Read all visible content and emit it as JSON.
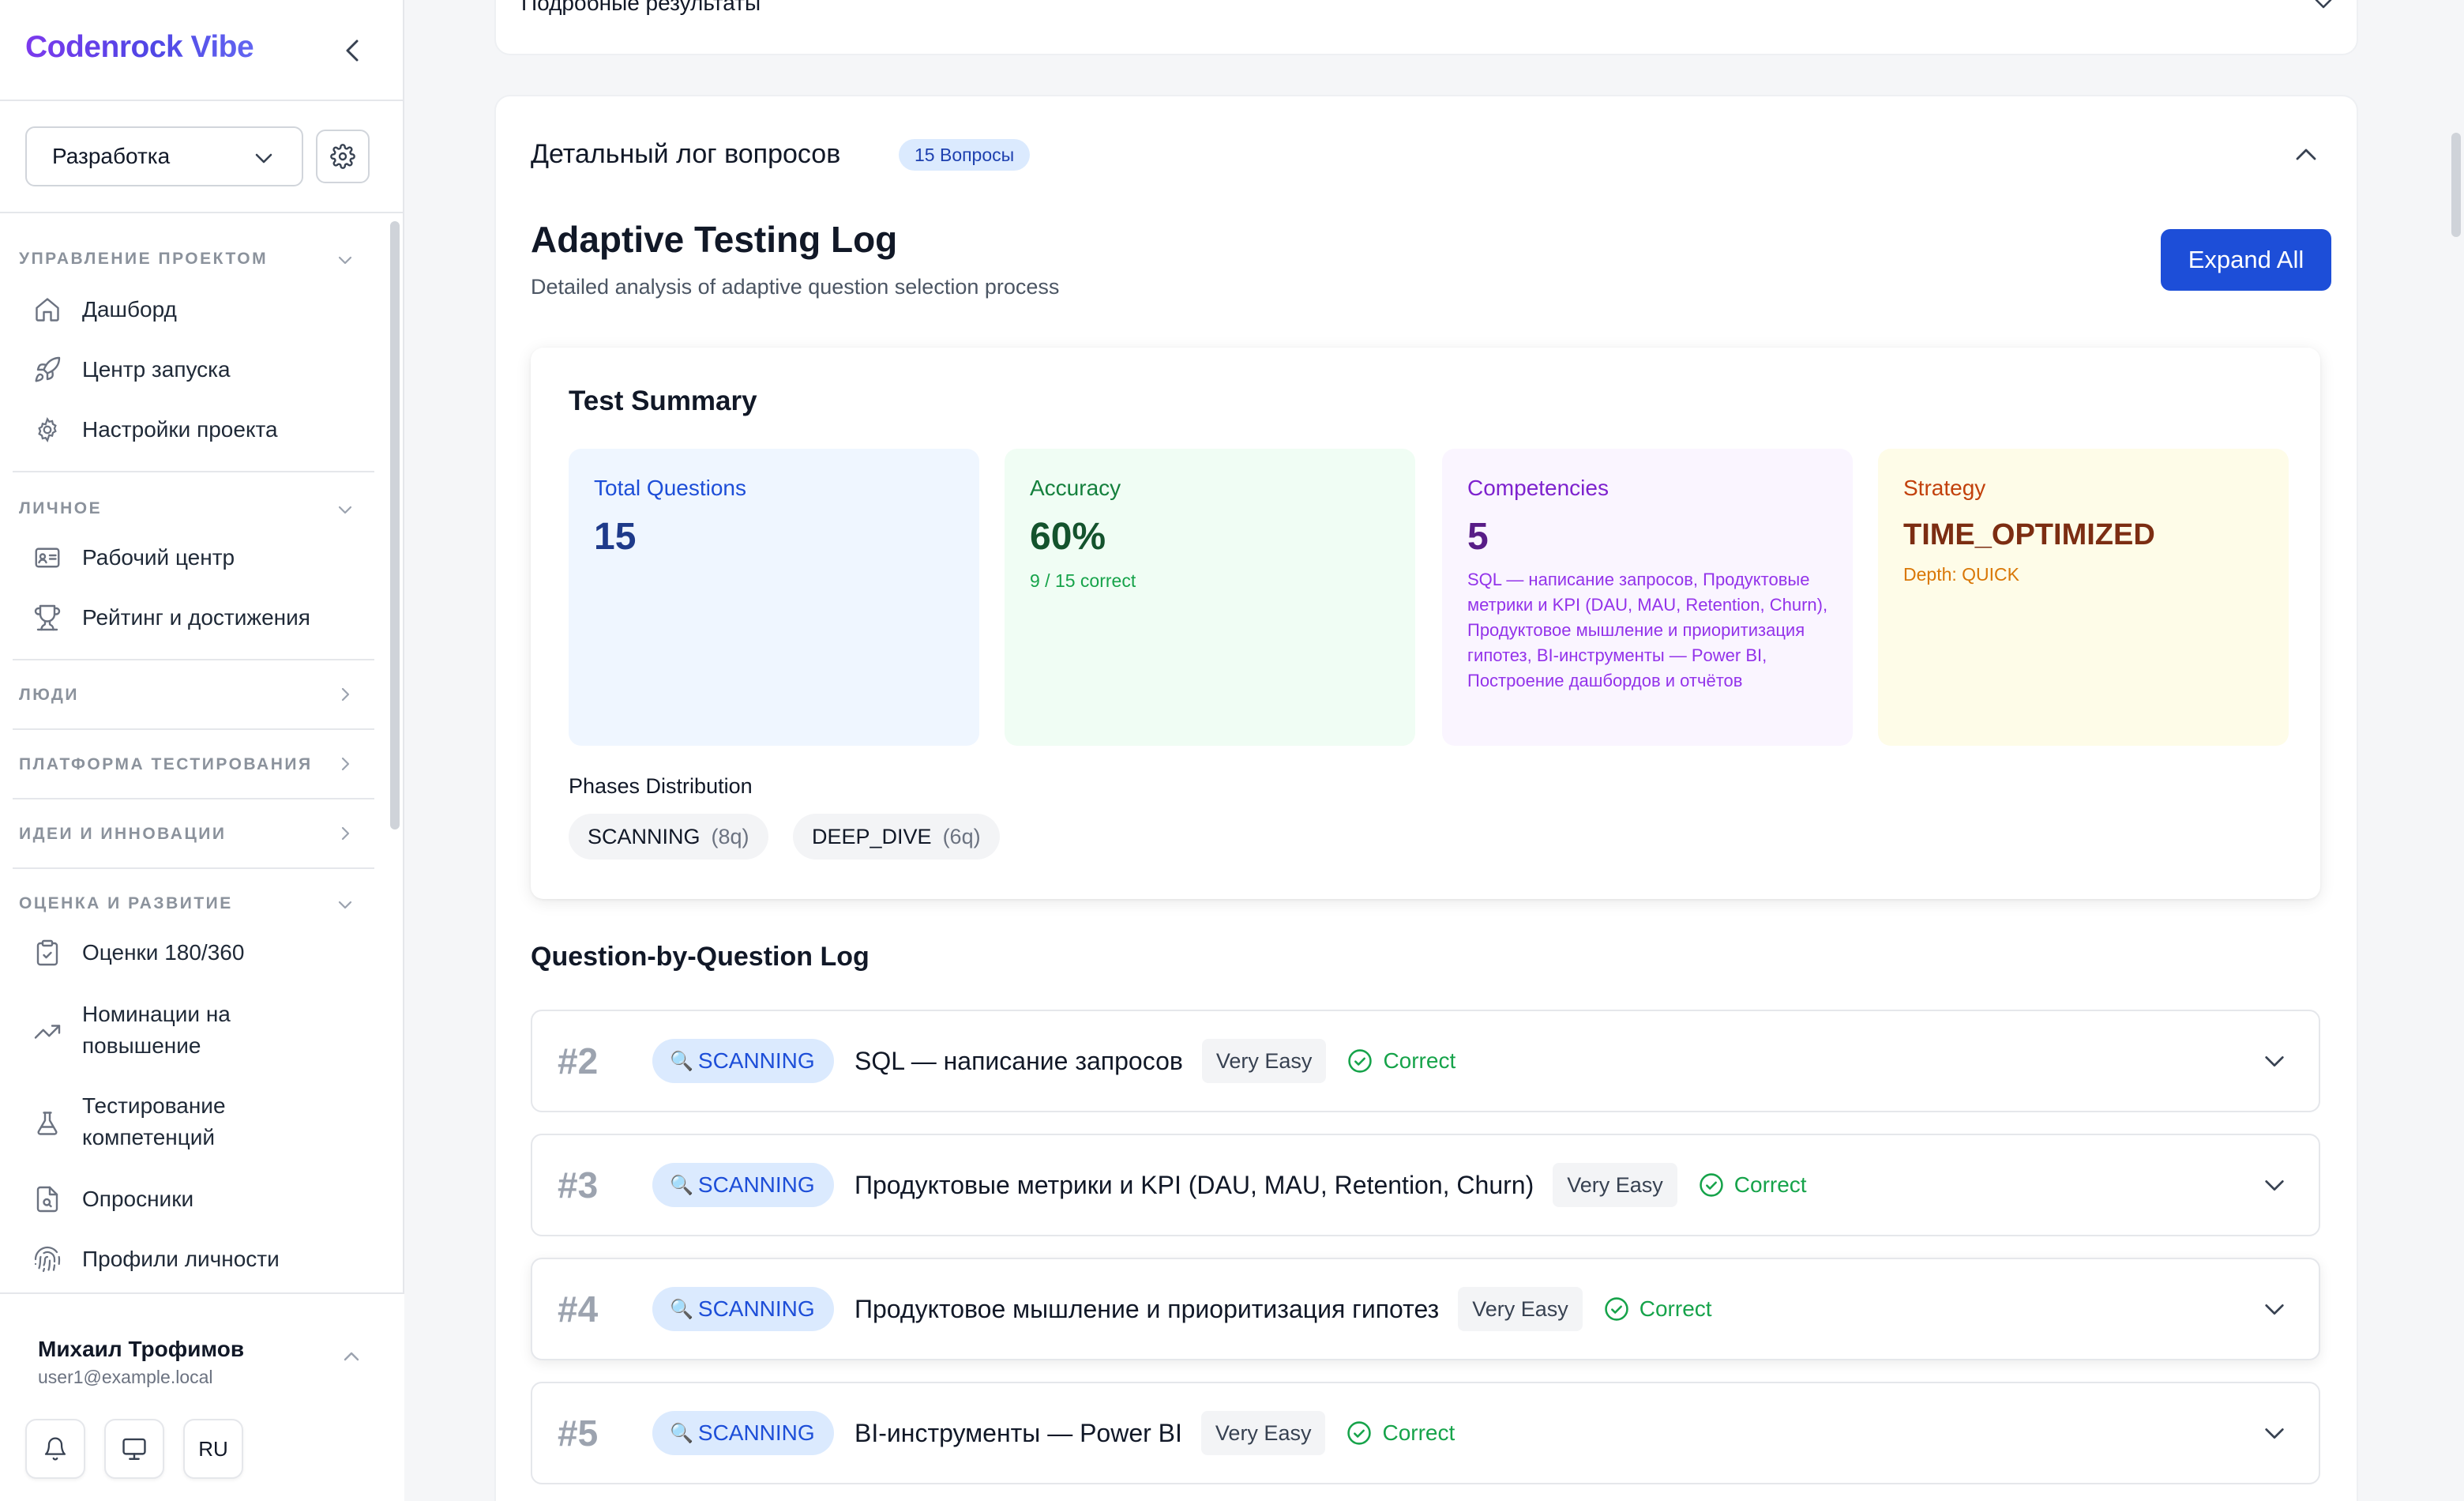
{
  "brand": "Codenrock Vibe",
  "project_select": {
    "value": "Разработка"
  },
  "sidebar": {
    "sections": [
      {
        "title": "Управление проектом",
        "items": [
          "Дашборд",
          "Центр запуска",
          "Настройки проекта"
        ]
      },
      {
        "title": "Личное",
        "items": [
          "Рабочий центр",
          "Рейтинг и достижения"
        ]
      },
      {
        "title": "Люди",
        "items": []
      },
      {
        "title": "Платформа тестирования",
        "items": []
      },
      {
        "title": "Идеи и инновации",
        "items": []
      },
      {
        "title": "Оценка и развитие",
        "items": [
          "Оценки 180/360",
          "Номинации на повышение",
          "Тестирование компетенций",
          "Опросники",
          "Профили личности"
        ]
      }
    ]
  },
  "user": {
    "name": "Михаил Трофимов",
    "email": "user1@example.local",
    "lang": "RU"
  },
  "prev_card": {
    "title": "Подробные результаты"
  },
  "log_card": {
    "title": "Детальный лог вопросов",
    "badge": "15 Вопросы",
    "heading": "Adaptive Testing Log",
    "subtitle": "Detailed analysis of adaptive question selection process",
    "expand_label": "Expand All"
  },
  "summary": {
    "title": "Test Summary",
    "total": {
      "label": "Total Questions",
      "value": "15"
    },
    "accuracy": {
      "label": "Accuracy",
      "value": "60%",
      "sub": "9 / 15 correct"
    },
    "competencies": {
      "label": "Competencies",
      "value": "5",
      "sub": "SQL — написание запросов, Продуктовые метрики и KPI (DAU, MAU, Retention, Churn), Продуктовое мышление и приоритизация гипотез, BI-инструменты — Power BI, Построение дашбордов и отчётов"
    },
    "strategy": {
      "label": "Strategy",
      "value": "TIME_OPTIMIZED",
      "sub": "Depth: QUICK"
    },
    "phases_label": "Phases Distribution",
    "phases": [
      {
        "name": "SCANNING",
        "count": "(8q)"
      },
      {
        "name": "DEEP_DIVE",
        "count": "(6q)"
      }
    ]
  },
  "qlog": {
    "title": "Question-by-Question Log",
    "rows": [
      {
        "num": "#2",
        "phase": "SCANNING",
        "topic": "SQL — написание запросов",
        "difficulty": "Very Easy",
        "result": "Correct"
      },
      {
        "num": "#3",
        "phase": "SCANNING",
        "topic": "Продуктовые метрики и KPI (DAU, MAU, Retention, Churn)",
        "difficulty": "Very Easy",
        "result": "Correct"
      },
      {
        "num": "#4",
        "phase": "SCANNING",
        "topic": "Продуктовое мышление и приоритизация гипотез",
        "difficulty": "Very Easy",
        "result": "Correct"
      },
      {
        "num": "#5",
        "phase": "SCANNING",
        "topic": "BI-инструменты — Power BI",
        "difficulty": "Very Easy",
        "result": "Correct"
      }
    ]
  },
  "colors": {
    "accent": "#1d4ed8",
    "correct": "#16a34a",
    "total_bg": "#eff6ff",
    "accuracy_bg": "#f0fdf4",
    "competencies_bg": "#faf5ff",
    "strategy_bg": "#fefce8"
  }
}
